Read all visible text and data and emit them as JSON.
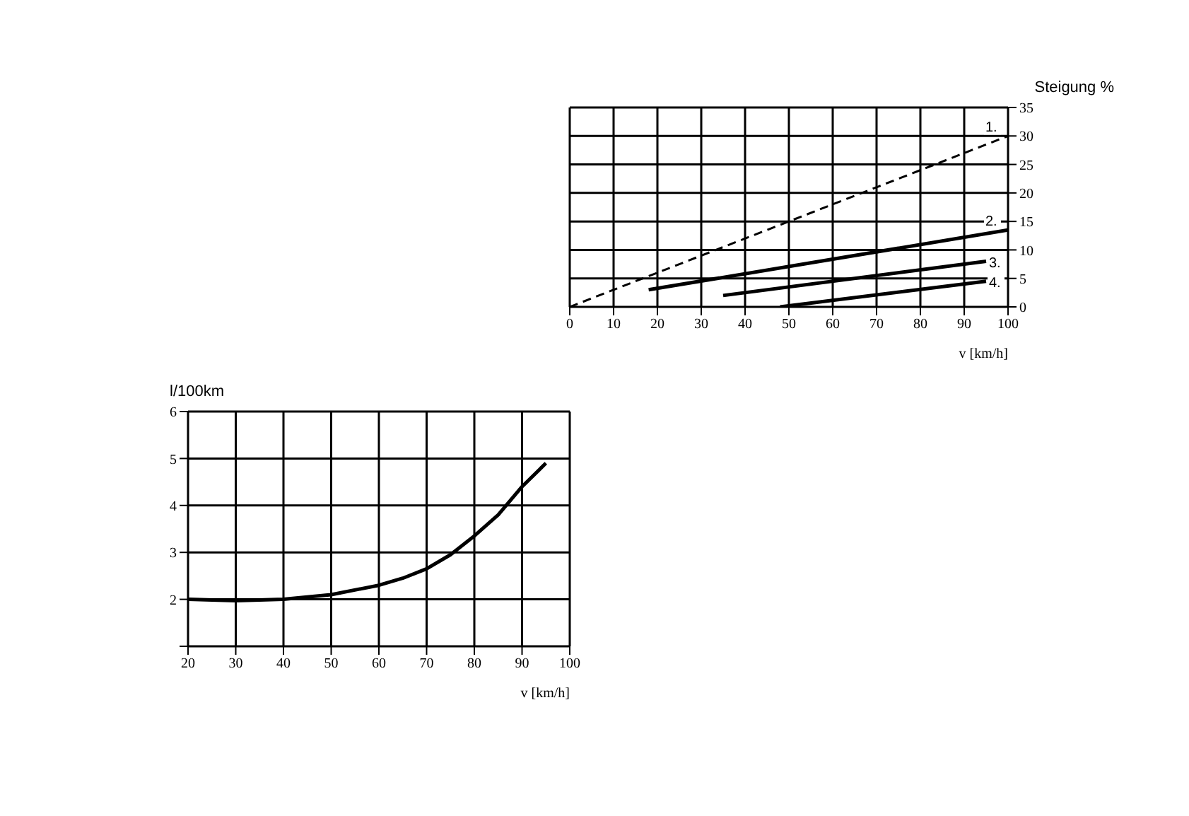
{
  "chart_data": [
    {
      "type": "line",
      "ylabel": "Steigung %",
      "xlabel": "v [km/h]",
      "xlim": [
        0,
        100
      ],
      "xticks": [
        0,
        10,
        20,
        30,
        40,
        50,
        60,
        70,
        80,
        90,
        100
      ],
      "ylim": [
        0,
        35
      ],
      "yticks": [
        0,
        5,
        10,
        15,
        20,
        25,
        30,
        35
      ],
      "grid": true,
      "legend": false,
      "marker": "none",
      "series": [
        {
          "name": "1.",
          "color": "#000000",
          "line_style": "dashed",
          "x": [
            0,
            100
          ],
          "values": [
            0,
            30
          ]
        },
        {
          "name": "2.",
          "color": "#000000",
          "line_style": "solid",
          "x": [
            18,
            100
          ],
          "values": [
            3,
            13.5
          ]
        },
        {
          "name": "3.",
          "color": "#000000",
          "line_style": "solid",
          "x": [
            35,
            95
          ],
          "values": [
            2,
            8
          ]
        },
        {
          "name": "4.",
          "color": "#000000",
          "line_style": "solid",
          "x": [
            48,
            95
          ],
          "values": [
            0,
            4.5
          ]
        }
      ]
    },
    {
      "type": "line",
      "ylabel": "l/100km",
      "xlabel": "v [km/h]",
      "xlim": [
        20,
        100
      ],
      "xticks": [
        20,
        30,
        40,
        50,
        60,
        70,
        80,
        90,
        100
      ],
      "ylim": [
        1,
        6
      ],
      "yticks": [
        {
          "value": 1,
          "label": null
        },
        2,
        3,
        4,
        5,
        6
      ],
      "grid": true,
      "legend": false,
      "marker": "none",
      "line_style": "solid",
      "series": [
        {
          "color": "#000000",
          "x": [
            20,
            30,
            40,
            50,
            60,
            65,
            70,
            75,
            80,
            85,
            90,
            95
          ],
          "values": [
            2.0,
            1.97,
            2.0,
            2.1,
            2.3,
            2.45,
            2.65,
            2.95,
            3.35,
            3.8,
            4.4,
            4.9
          ]
        }
      ]
    }
  ]
}
